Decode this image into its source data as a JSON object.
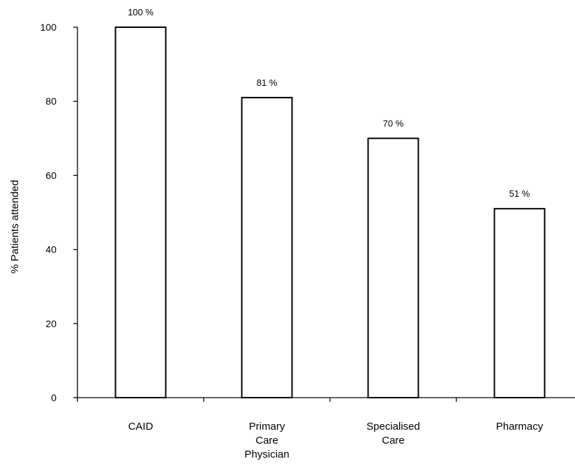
{
  "chart_data": {
    "type": "bar",
    "categories": [
      [
        "CAID"
      ],
      [
        "Primary",
        "Care",
        "Physician"
      ],
      [
        "Specialised",
        "Care"
      ],
      [
        "Pharmacy"
      ]
    ],
    "values": [
      100,
      81,
      70,
      51
    ],
    "data_labels": [
      "100 %",
      "81 %",
      "70 %",
      "51 %"
    ],
    "title": "",
    "xlabel": "",
    "ylabel": "% Patients attended",
    "ylim": [
      0,
      100
    ],
    "yticks": [
      0,
      20,
      40,
      60,
      80,
      100
    ],
    "grid": false,
    "bar_fill": "#ffffff",
    "bar_stroke": "#000000"
  }
}
